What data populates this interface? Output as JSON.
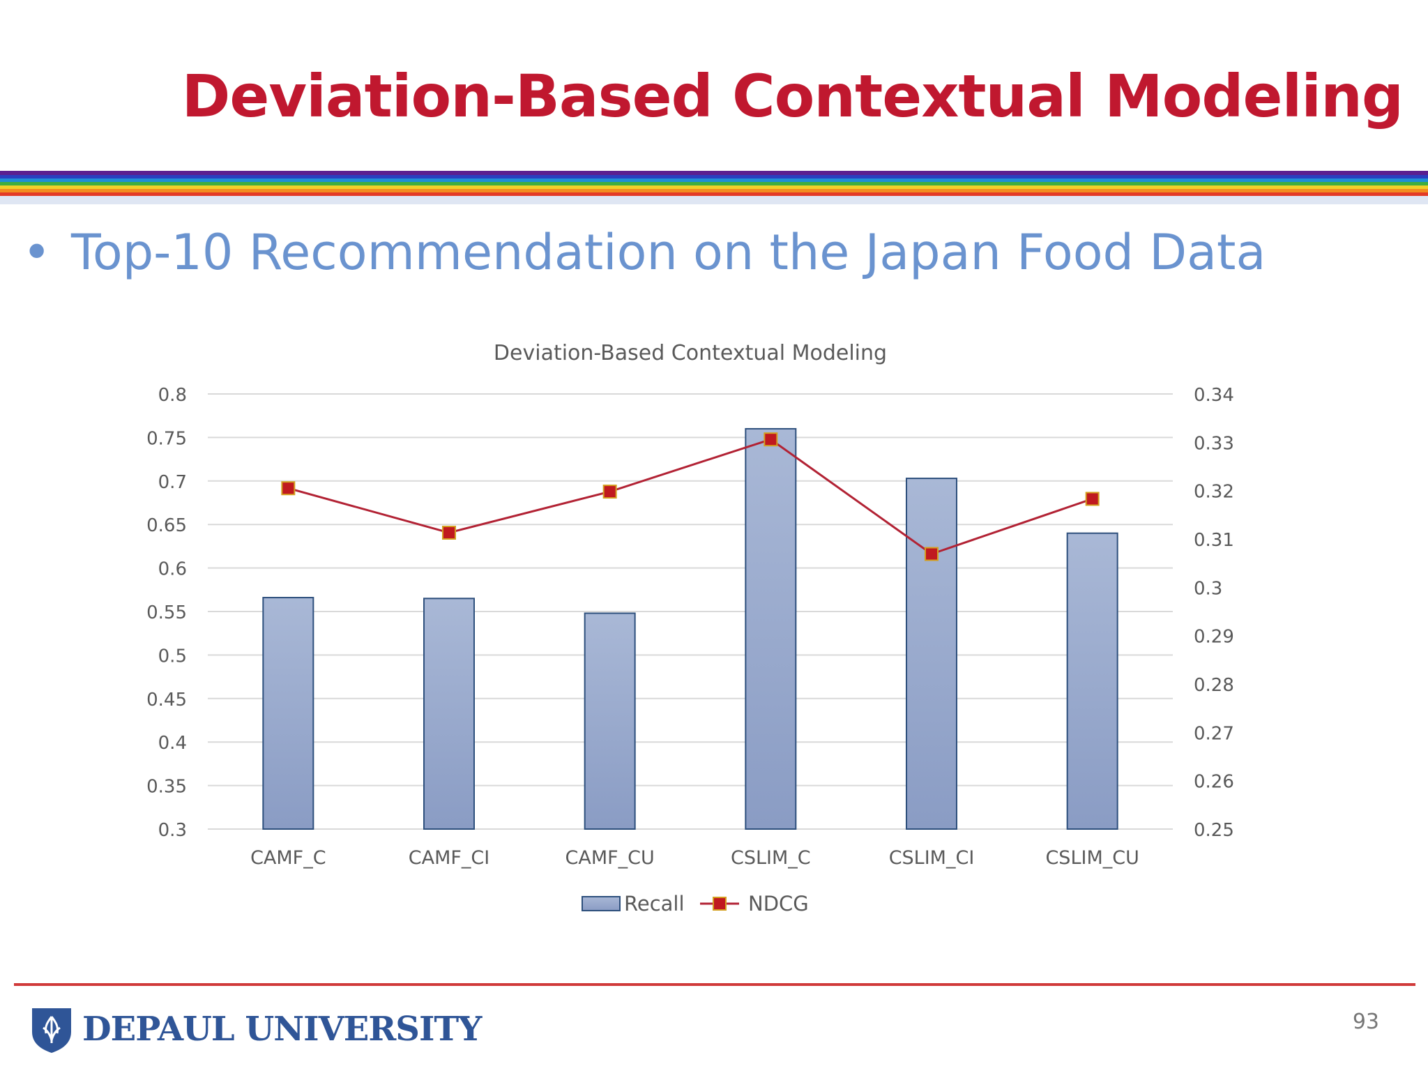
{
  "slide": {
    "title": "Deviation-Based Contextual Modeling",
    "bullet": "Top-10 Recommendation on the Japan Food Data",
    "university": "DEPAUL UNIVERSITY",
    "page_number": "93"
  },
  "colors": {
    "title": "#c0182f",
    "bullet": "#6a93cf",
    "bar_fill_top": "#a9b8d6",
    "bar_fill_bottom": "#8a9cc4",
    "bar_stroke": "#2d4f7c",
    "line": "#b22234",
    "marker": "#c0191f",
    "marker_edge": "#d4a020"
  },
  "chart_data": {
    "type": "bar",
    "title": "Deviation-Based Contextual Modeling",
    "categories": [
      "CAMF_C",
      "CAMF_CI",
      "CAMF_CU",
      "CSLIM_C",
      "CSLIM_CI",
      "CSLIM_CU"
    ],
    "series": [
      {
        "name": "Recall",
        "type": "bar",
        "axis": "left",
        "values": [
          0.566,
          0.565,
          0.548,
          0.76,
          0.703,
          0.64
        ]
      },
      {
        "name": "NDCG",
        "type": "line",
        "axis": "right",
        "values": [
          0.3205,
          0.3113,
          0.3198,
          0.3306,
          0.3069,
          0.3183
        ]
      }
    ],
    "y_left": {
      "min": 0.3,
      "max": 0.8,
      "ticks": [
        "0.3",
        "0.35",
        "0.4",
        "0.45",
        "0.5",
        "0.55",
        "0.6",
        "0.65",
        "0.7",
        "0.75",
        "0.8"
      ]
    },
    "y_right": {
      "min": 0.25,
      "max": 0.34,
      "ticks": [
        "0.25",
        "0.26",
        "0.27",
        "0.28",
        "0.29",
        "0.3",
        "0.31",
        "0.32",
        "0.33",
        "0.34"
      ]
    },
    "grid": true,
    "legend": "bottom"
  }
}
